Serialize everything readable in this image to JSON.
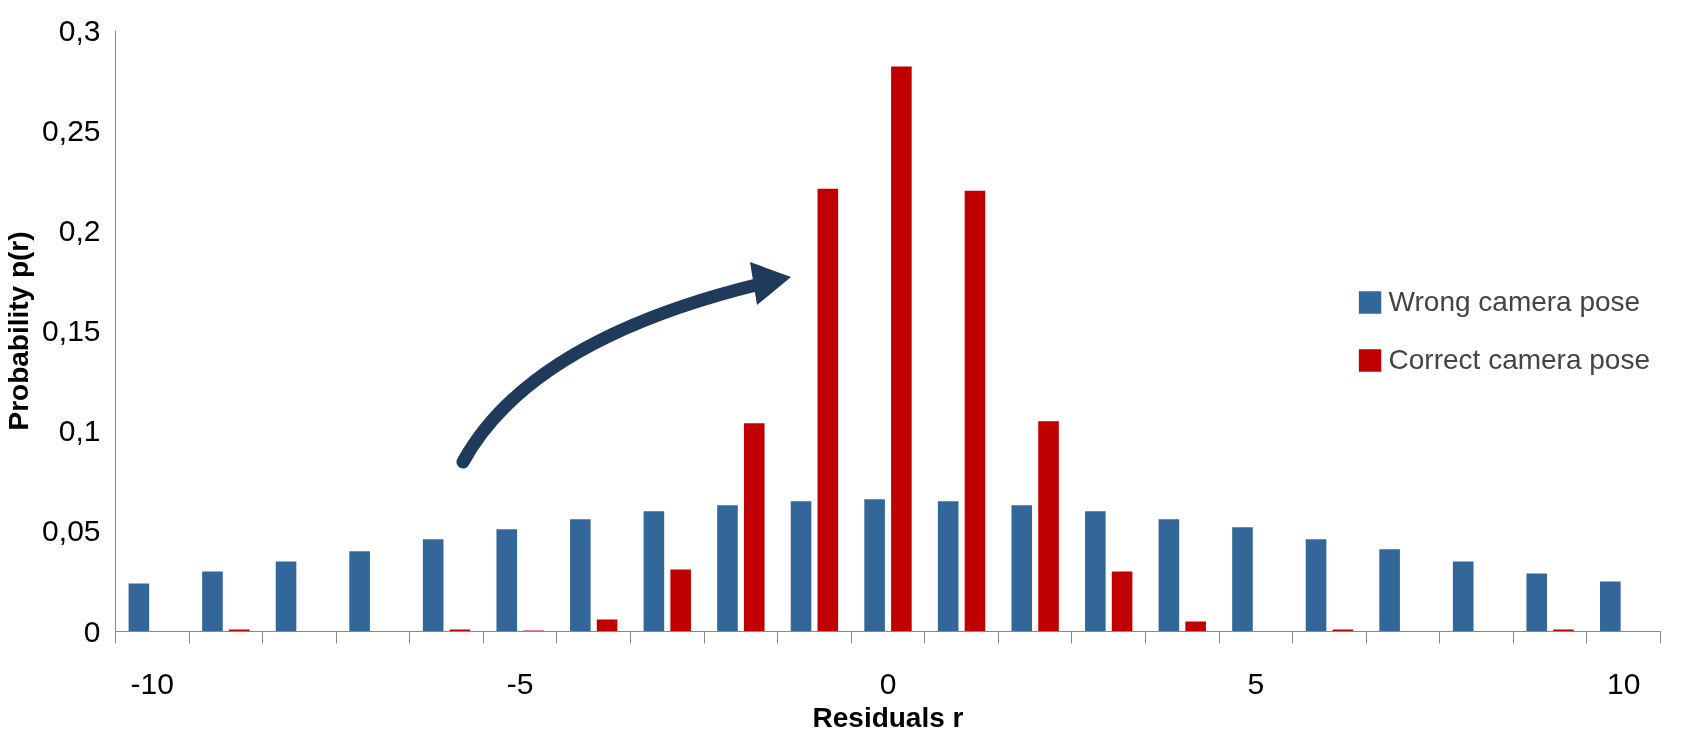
{
  "chart_data": {
    "type": "bar",
    "xlabel": "Residuals r",
    "ylabel": "Probability p(r)",
    "categories": [
      "-10",
      null,
      null,
      null,
      null,
      "-5",
      null,
      null,
      null,
      null,
      "0",
      null,
      null,
      null,
      null,
      "5",
      null,
      null,
      null,
      null,
      "10"
    ],
    "series": [
      {
        "name": "Wrong camera pose",
        "color": "#336699",
        "values": [
          0.024,
          0.03,
          0.035,
          0.04,
          0.046,
          0.051,
          0.056,
          0.06,
          0.063,
          0.065,
          0.066,
          0.065,
          0.063,
          0.06,
          0.056,
          0.052,
          0.046,
          0.041,
          0.035,
          0.029,
          0.025
        ]
      },
      {
        "name": "Correct camera pose",
        "color": "#c00000",
        "values": [
          0,
          0.001,
          0,
          0,
          0.001,
          0.0005,
          0.006,
          0.031,
          0.104,
          0.221,
          0.282,
          0.22,
          0.105,
          0.03,
          0.005,
          0,
          0.001,
          0,
          0,
          0.001,
          0
        ]
      }
    ],
    "ylim": [
      0,
      0.3
    ],
    "yticks": [
      {
        "value": 0,
        "label": "0"
      },
      {
        "value": 0.05,
        "label": "0,05"
      },
      {
        "value": 0.1,
        "label": "0,1"
      },
      {
        "value": 0.15,
        "label": "0,15"
      },
      {
        "value": 0.2,
        "label": "0,2"
      },
      {
        "value": 0.25,
        "label": "0,25"
      },
      {
        "value": 0.3,
        "label": "0,3"
      }
    ],
    "grid": false,
    "legend": "right"
  }
}
